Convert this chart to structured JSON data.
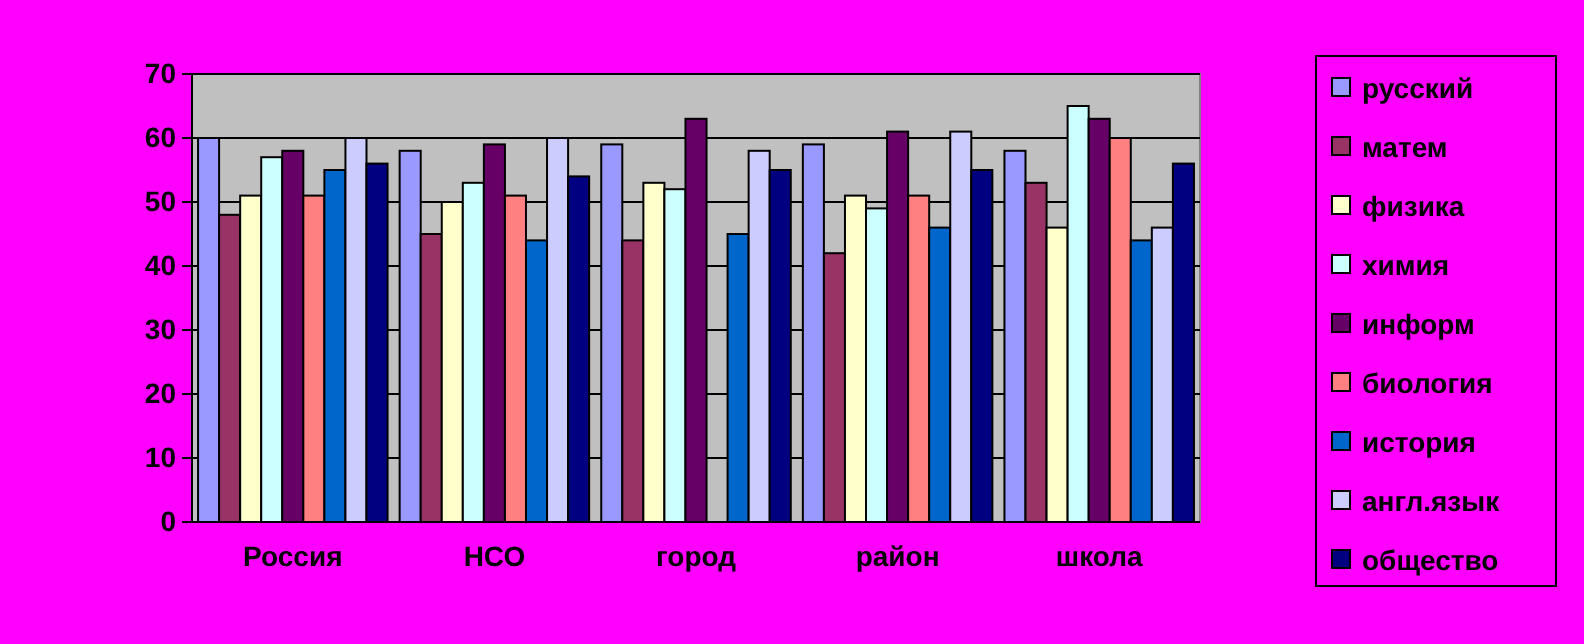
{
  "chart_data": {
    "type": "bar",
    "categories": [
      "Россия",
      "НСО",
      "город",
      "район",
      "школа"
    ],
    "series": [
      {
        "name": "русский",
        "color": "#9999ff",
        "values": [
          60,
          58,
          59,
          59,
          58
        ]
      },
      {
        "name": "матем",
        "color": "#993366",
        "values": [
          48,
          45,
          44,
          42,
          53
        ]
      },
      {
        "name": "физика",
        "color": "#ffffcc",
        "values": [
          51,
          50,
          53,
          51,
          46
        ]
      },
      {
        "name": "химия",
        "color": "#ccffff",
        "values": [
          57,
          53,
          52,
          49,
          65
        ]
      },
      {
        "name": "информ",
        "color": "#660066",
        "values": [
          58,
          59,
          63,
          61,
          63
        ]
      },
      {
        "name": "биология",
        "color": "#ff8080",
        "values": [
          51,
          51,
          null,
          51,
          60
        ]
      },
      {
        "name": "история",
        "color": "#0066cc",
        "values": [
          55,
          44,
          45,
          46,
          44
        ]
      },
      {
        "name": "англ.язык",
        "color": "#ccccff",
        "values": [
          60,
          60,
          58,
          61,
          46
        ]
      },
      {
        "name": "общество",
        "color": "#000080",
        "values": [
          56,
          54,
          55,
          55,
          56
        ]
      }
    ],
    "ylim": [
      0,
      70
    ],
    "yticks": [
      0,
      10,
      20,
      30,
      40,
      50,
      60,
      70
    ],
    "grid": "y",
    "legend": "right"
  }
}
